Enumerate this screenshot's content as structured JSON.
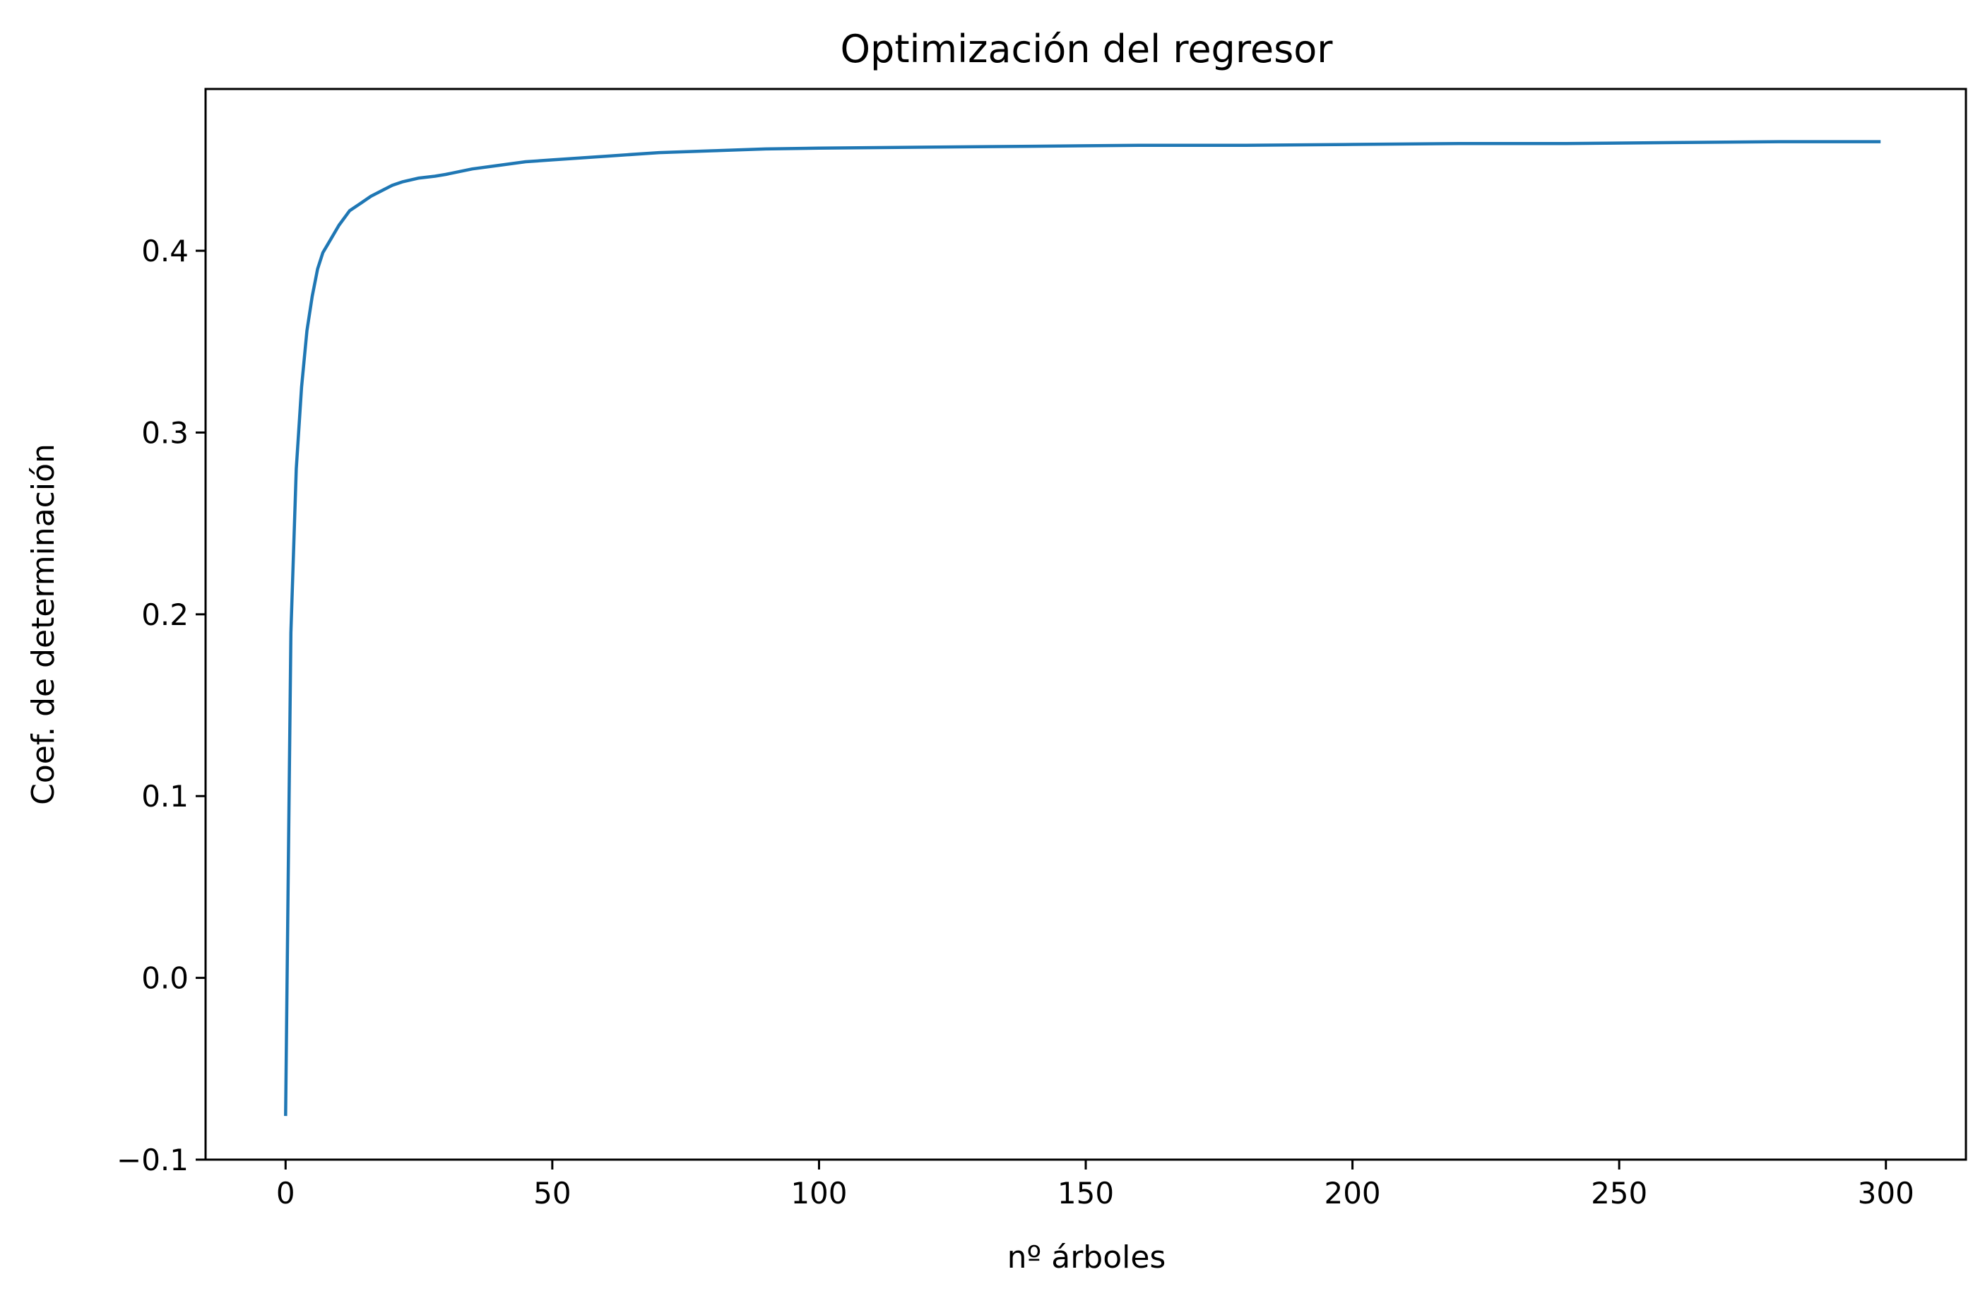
{
  "chart_data": {
    "type": "line",
    "title": "Optimización del regresor",
    "xlabel": "nº árboles",
    "ylabel": "Coef. de determinación",
    "xlim": [
      -15,
      315
    ],
    "ylim": [
      -0.1,
      0.489
    ],
    "x_ticks": [
      0,
      50,
      100,
      150,
      200,
      250,
      300
    ],
    "x_tick_labels": [
      "0",
      "50",
      "100",
      "150",
      "200",
      "250",
      "300"
    ],
    "y_ticks": [
      -0.1,
      0.0,
      0.1,
      0.2,
      0.3,
      0.4
    ],
    "y_tick_labels": [
      "−0.1",
      "0.0",
      "0.1",
      "0.2",
      "0.3",
      "0.4"
    ],
    "grid": false,
    "series": [
      {
        "color": "#1f77b4",
        "x": [
          0,
          1,
          2,
          3,
          4,
          5,
          6,
          7,
          8,
          10,
          12,
          14,
          16,
          18,
          20,
          22,
          25,
          28,
          30,
          35,
          40,
          45,
          50,
          60,
          70,
          80,
          90,
          100,
          120,
          140,
          160,
          180,
          200,
          220,
          240,
          260,
          280,
          299
        ],
        "y": [
          -0.076,
          0.19,
          0.28,
          0.325,
          0.356,
          0.375,
          0.39,
          0.399,
          0.404,
          0.414,
          0.422,
          0.426,
          0.43,
          0.433,
          0.436,
          0.438,
          0.44,
          0.441,
          0.442,
          0.445,
          0.447,
          0.449,
          0.45,
          0.452,
          0.454,
          0.455,
          0.456,
          0.4565,
          0.457,
          0.4575,
          0.458,
          0.458,
          0.4585,
          0.459,
          0.459,
          0.4595,
          0.46,
          0.46
        ]
      }
    ]
  }
}
